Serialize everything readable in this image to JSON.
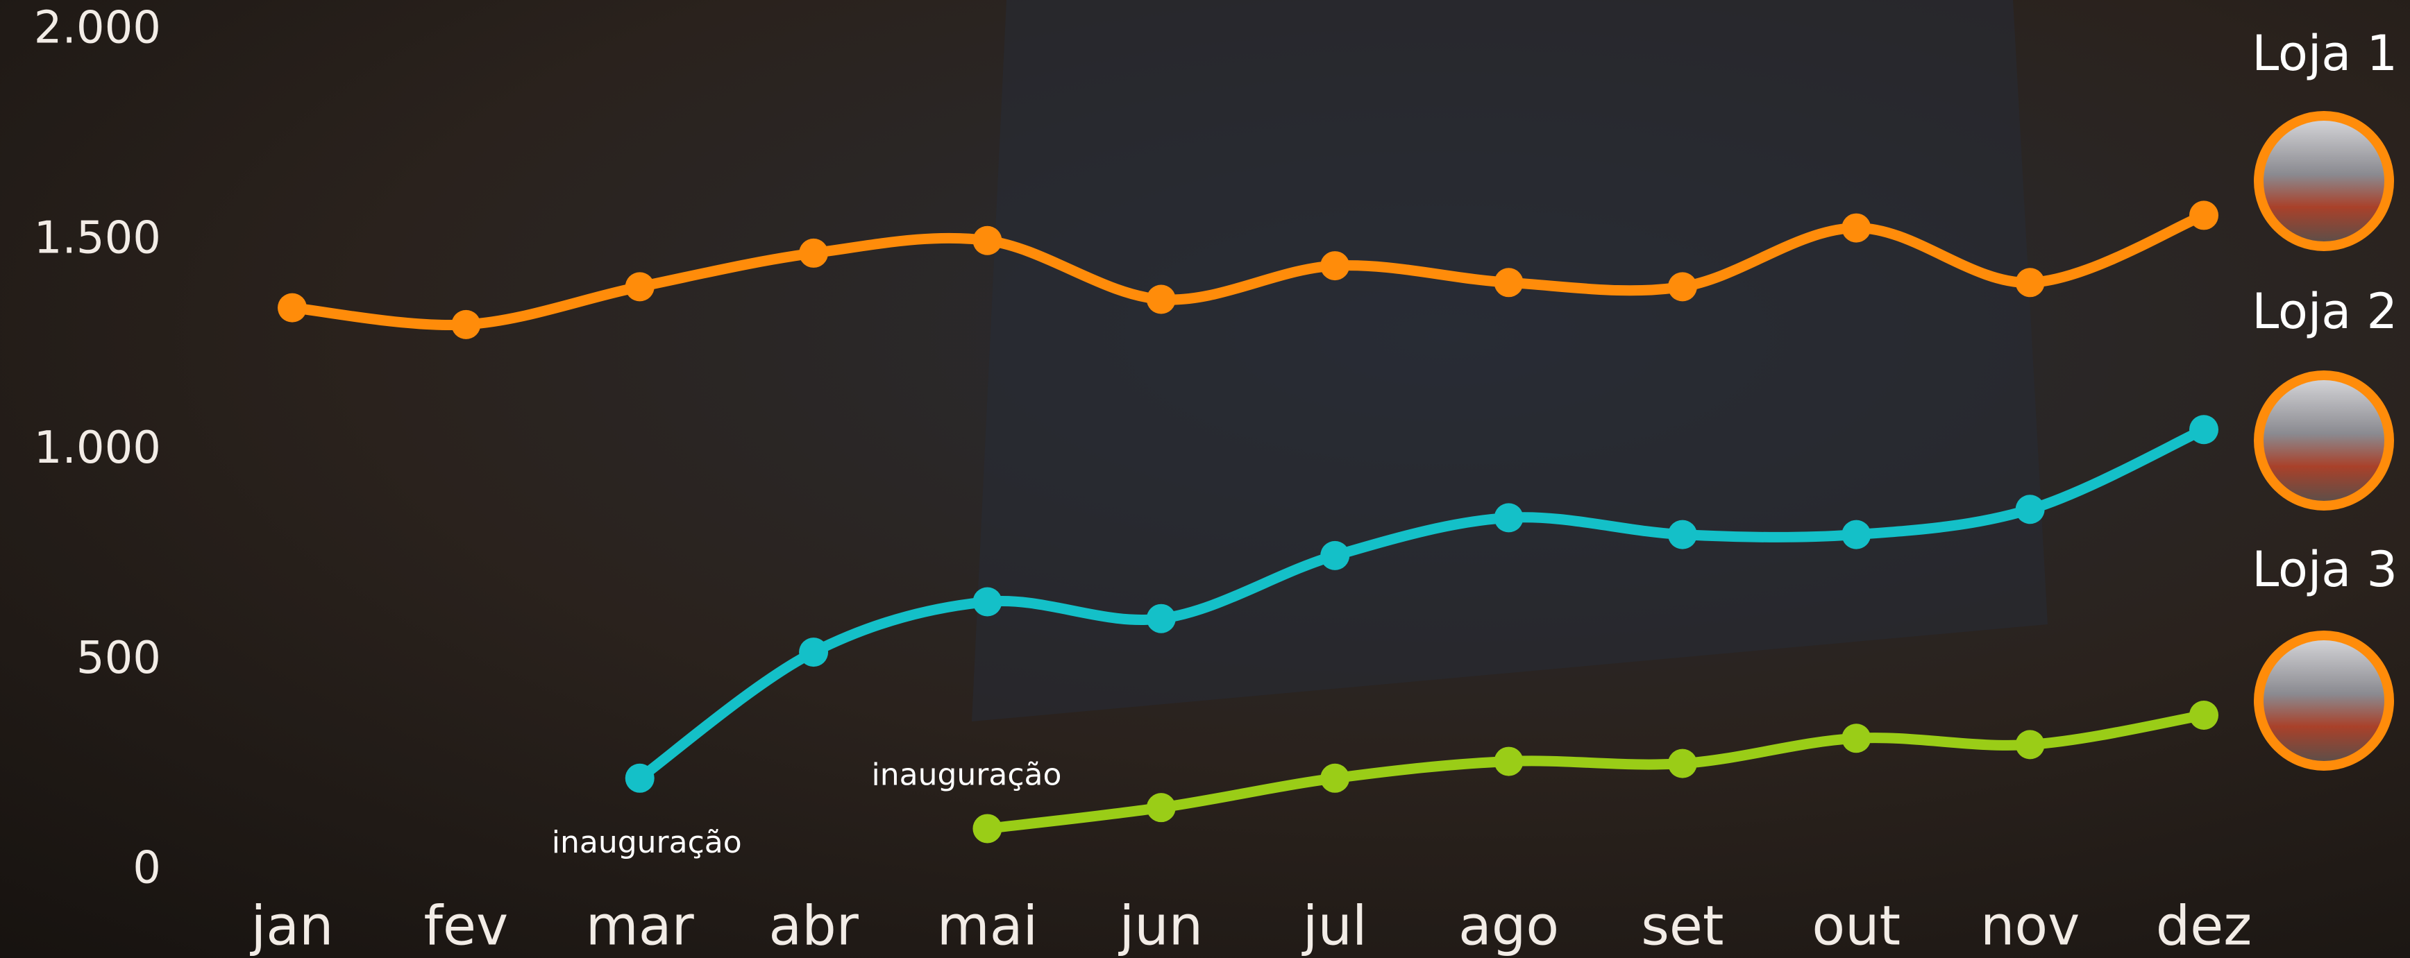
{
  "chart_data": {
    "type": "line",
    "categories": [
      "jan",
      "fev",
      "mar",
      "abr",
      "mai",
      "jun",
      "jul",
      "ago",
      "set",
      "out",
      "nov",
      "dez"
    ],
    "series": [
      {
        "name": "Loja 1",
        "color": "#ff8c0a",
        "values": [
          1340,
          1300,
          1390,
          1470,
          1500,
          1360,
          1440,
          1400,
          1390,
          1530,
          1400,
          1560
        ]
      },
      {
        "name": "Loja 2",
        "color": "#14c0c8",
        "values": [
          null,
          null,
          220,
          520,
          640,
          600,
          750,
          840,
          800,
          800,
          860,
          1050
        ]
      },
      {
        "name": "Loja 3",
        "color": "#9acd17",
        "values": [
          null,
          null,
          null,
          null,
          100,
          150,
          220,
          260,
          255,
          315,
          300,
          370
        ]
      }
    ],
    "annotations": [
      "inauguração",
      "inauguração"
    ],
    "ylim": [
      0,
      2000
    ],
    "yticks": [
      0,
      500,
      {
        "value": 1000,
        "label": "1.000"
      },
      {
        "value": 1500,
        "label": "1.500"
      },
      {
        "value": 2000,
        "label": "2.000"
      }
    ],
    "grid": false
  }
}
